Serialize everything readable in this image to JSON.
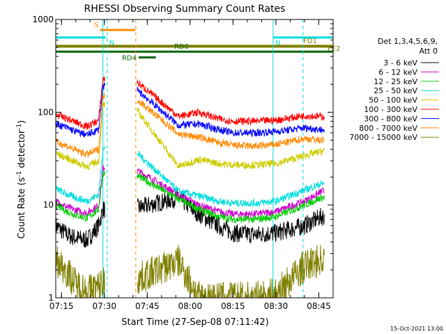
{
  "chart_data": {
    "type": "line",
    "title": "RHESSI Observing Summary Count Rates",
    "xlabel": "Start Time (27-Sep-08 07:11:42)",
    "ylabel_main": "Count Rate (s",
    "ylabel_sup1": "-1",
    "ylabel_mid": " detector",
    "ylabel_sup2": "-1",
    "ylabel_end": ")",
    "footer": "15-Oct-2021 13:00",
    "ylog": true,
    "ylim": [
      1,
      1000
    ],
    "xlim_min": [
      433,
      530
    ],
    "x_tick_minutes": [
      435,
      450,
      465,
      480,
      495,
      510,
      525
    ],
    "x_tick_labels": [
      "07:15",
      "07:30",
      "07:45",
      "08:00",
      "08:15",
      "08:30",
      "08:45"
    ],
    "y_tick_values": [
      1,
      10,
      100,
      1000
    ],
    "y_tick_labels": [
      "1",
      "10",
      "100",
      "1000"
    ],
    "legend": {
      "header": [
        "Det 1,3,4,5,6,9,",
        "Att 0"
      ],
      "placement": "right"
    },
    "series": [
      {
        "name": "3 - 6 keV",
        "color": "#000000",
        "data": [
          [
            433,
            6
          ],
          [
            437,
            4.8
          ],
          [
            440,
            4.4
          ],
          [
            444,
            4.2
          ],
          [
            448,
            6
          ],
          [
            449.5,
            9
          ],
          [
            460,
            9
          ],
          [
            476,
            12
          ],
          [
            483,
            8
          ],
          [
            490,
            6
          ],
          [
            495,
            5
          ],
          [
            503,
            4.8
          ],
          [
            510,
            5
          ],
          [
            520,
            6
          ],
          [
            526,
            7.5
          ]
        ]
      },
      {
        "name": "6 - 12 keV",
        "color": "#cc00cc",
        "data": [
          [
            433,
            11
          ],
          [
            437,
            9.5
          ],
          [
            440,
            8.8
          ],
          [
            444,
            8.2
          ],
          [
            448,
            10
          ],
          [
            449.5,
            25
          ],
          [
            460,
            25
          ],
          [
            476,
            13
          ],
          [
            483,
            10
          ],
          [
            490,
            8.5
          ],
          [
            495,
            8
          ],
          [
            503,
            8
          ],
          [
            510,
            8.5
          ],
          [
            520,
            11
          ],
          [
            526,
            14
          ]
        ]
      },
      {
        "name": "12 - 25 keV",
        "color": "#00cc00",
        "data": [
          [
            433,
            10
          ],
          [
            437,
            8.5
          ],
          [
            440,
            7.8
          ],
          [
            444,
            7.2
          ],
          [
            448,
            9
          ],
          [
            449.5,
            22
          ],
          [
            460,
            22
          ],
          [
            476,
            11.5
          ],
          [
            483,
            9
          ],
          [
            490,
            7.5
          ],
          [
            495,
            7
          ],
          [
            503,
            7
          ],
          [
            510,
            7.5
          ],
          [
            520,
            10
          ],
          [
            526,
            12
          ]
        ]
      },
      {
        "name": "25 - 50 keV",
        "color": "#00dddd",
        "data": [
          [
            433,
            15
          ],
          [
            437,
            13
          ],
          [
            440,
            12
          ],
          [
            444,
            11
          ],
          [
            448,
            13
          ],
          [
            449.5,
            40
          ],
          [
            460,
            40
          ],
          [
            476,
            14
          ],
          [
            483,
            12.5
          ],
          [
            490,
            11
          ],
          [
            495,
            10.5
          ],
          [
            503,
            10.5
          ],
          [
            510,
            11
          ],
          [
            520,
            14.5
          ],
          [
            526,
            17
          ]
        ]
      },
      {
        "name": "50 - 100 keV",
        "color": "#cccc00",
        "data": [
          [
            433,
            36
          ],
          [
            437,
            32
          ],
          [
            440,
            29
          ],
          [
            444,
            26
          ],
          [
            448,
            30
          ],
          [
            449.5,
            120
          ],
          [
            460,
            120
          ],
          [
            476,
            26
          ],
          [
            483,
            31
          ],
          [
            490,
            28
          ],
          [
            495,
            27
          ],
          [
            503,
            27
          ],
          [
            510,
            28
          ],
          [
            520,
            34
          ],
          [
            526,
            38
          ]
        ]
      },
      {
        "name": "100 - 300 keV",
        "color": "#ff0000",
        "data": [
          [
            433,
            95
          ],
          [
            437,
            85
          ],
          [
            440,
            78
          ],
          [
            444,
            70
          ],
          [
            448,
            82
          ],
          [
            449.5,
            230
          ],
          [
            460,
            230
          ],
          [
            476,
            90
          ],
          [
            483,
            100
          ],
          [
            490,
            85
          ],
          [
            495,
            80
          ],
          [
            503,
            80
          ],
          [
            510,
            82
          ],
          [
            520,
            92
          ],
          [
            526,
            90
          ]
        ]
      },
      {
        "name": "300 - 800 keV",
        "color": "#0000ff",
        "data": [
          [
            433,
            75
          ],
          [
            437,
            68
          ],
          [
            440,
            62
          ],
          [
            444,
            57
          ],
          [
            448,
            65
          ],
          [
            449.5,
            190
          ],
          [
            460,
            190
          ],
          [
            476,
            72
          ],
          [
            483,
            75
          ],
          [
            490,
            65
          ],
          [
            495,
            60
          ],
          [
            503,
            60
          ],
          [
            510,
            62
          ],
          [
            520,
            68
          ],
          [
            526,
            65
          ]
        ]
      },
      {
        "name": "800 - 7000 keV",
        "color": "#ff8800",
        "data": [
          [
            433,
            48
          ],
          [
            437,
            43
          ],
          [
            440,
            39
          ],
          [
            444,
            35
          ],
          [
            448,
            40
          ],
          [
            449.5,
            150
          ],
          [
            460,
            150
          ],
          [
            476,
            58
          ],
          [
            483,
            54
          ],
          [
            490,
            47
          ],
          [
            495,
            44
          ],
          [
            503,
            43
          ],
          [
            510,
            45
          ],
          [
            520,
            52
          ],
          [
            526,
            50
          ]
        ]
      },
      {
        "name": "7000 - 15000 keV",
        "color": "#808000",
        "data": [
          [
            433,
            2.6
          ],
          [
            437,
            1.9
          ],
          [
            440,
            1.4
          ],
          [
            444,
            1.2
          ],
          [
            448,
            1.3
          ],
          [
            449.5,
            1.5
          ],
          [
            460,
            1.5
          ],
          [
            476,
            2.5
          ],
          [
            483,
            1.0
          ],
          [
            490,
            1.0
          ],
          [
            495,
            1.0
          ],
          [
            503,
            1.0
          ],
          [
            510,
            1.1
          ],
          [
            520,
            2.2
          ],
          [
            526,
            2.6
          ]
        ]
      }
    ],
    "vertical_lines": [
      {
        "x": 449.5,
        "color": "#00dddd",
        "style": "solid"
      },
      {
        "x": 451,
        "color": "#00dddd",
        "style": "dashed"
      },
      {
        "x": 461,
        "color": "#ff8800",
        "style": "dashed"
      },
      {
        "x": 509,
        "color": "#00dddd",
        "style": "solid"
      },
      {
        "x": 519.5,
        "color": "#00dddd",
        "style": "dashed"
      }
    ],
    "flag_bars": [
      {
        "label": "S",
        "color": "#ff8800",
        "x0": 448.5,
        "x1": 460.8,
        "y": 770
      },
      {
        "label": "N",
        "color": "#00dddd",
        "x0": 433,
        "x1": 450.5,
        "y": 640
      },
      {
        "label": "N",
        "color": "#00dddd",
        "x0": 509,
        "x1": 530,
        "y": 640
      },
      {
        "label": "FD1",
        "color": "#808000",
        "x0": 433,
        "x1": 530,
        "y": 520
      },
      {
        "label": "FE2",
        "color": "#808000",
        "x0": 433,
        "x1": 530,
        "y": 510
      },
      {
        "label": "RD0",
        "color": "#006600",
        "x0": 433,
        "x1": 530,
        "y": 450
      },
      {
        "label": "RD4",
        "color": "#006600",
        "x0": 462,
        "x1": 468,
        "y": 390
      }
    ]
  }
}
